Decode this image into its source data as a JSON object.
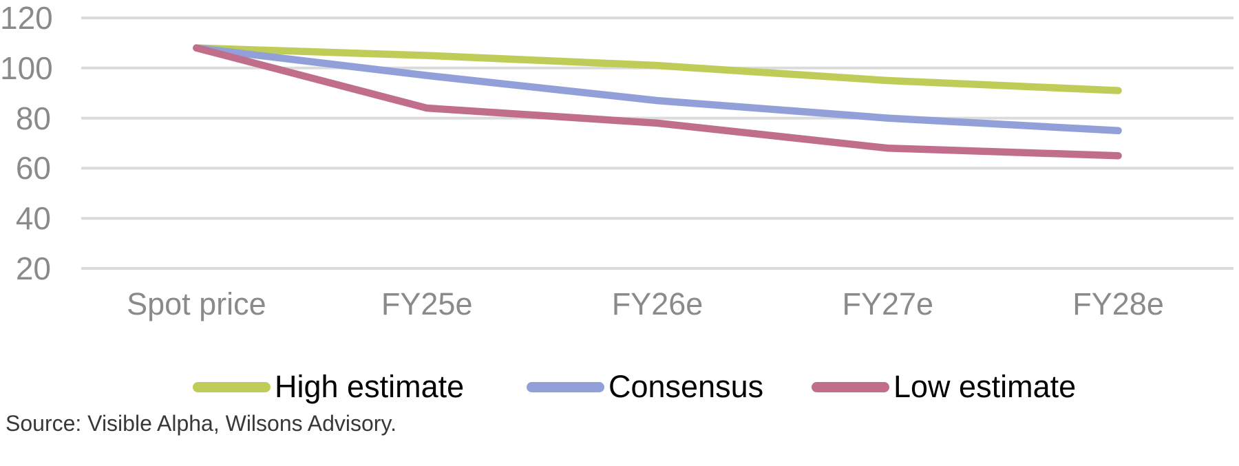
{
  "chart_data": {
    "type": "line",
    "title": "",
    "categories": [
      "Spot price",
      "FY25e",
      "FY26e",
      "FY27e",
      "FY28e"
    ],
    "series": [
      {
        "name": "High estimate",
        "color": "#BFCD58",
        "values": [
          108,
          105,
          101,
          95,
          91
        ]
      },
      {
        "name": "Consensus",
        "color": "#91A0D8",
        "values": [
          108,
          97,
          87,
          80,
          75
        ]
      },
      {
        "name": "Low estimate",
        "color": "#C16E8D",
        "values": [
          108,
          84,
          78,
          68,
          65
        ]
      }
    ],
    "y_ticks": [
      120,
      100,
      80,
      60,
      40,
      20
    ],
    "ylim": [
      20,
      120
    ],
    "xlabel": "",
    "ylabel": "",
    "grid": true,
    "legend_position": "bottom"
  },
  "source": "Source: Visible Alpha, Wilsons Advisory.",
  "colors": {
    "gridline": "#DBDBDB",
    "axis_text": "#8A8A8A",
    "legend_text": "#000000",
    "source_text": "#383838",
    "background": "#FFFFFF"
  }
}
